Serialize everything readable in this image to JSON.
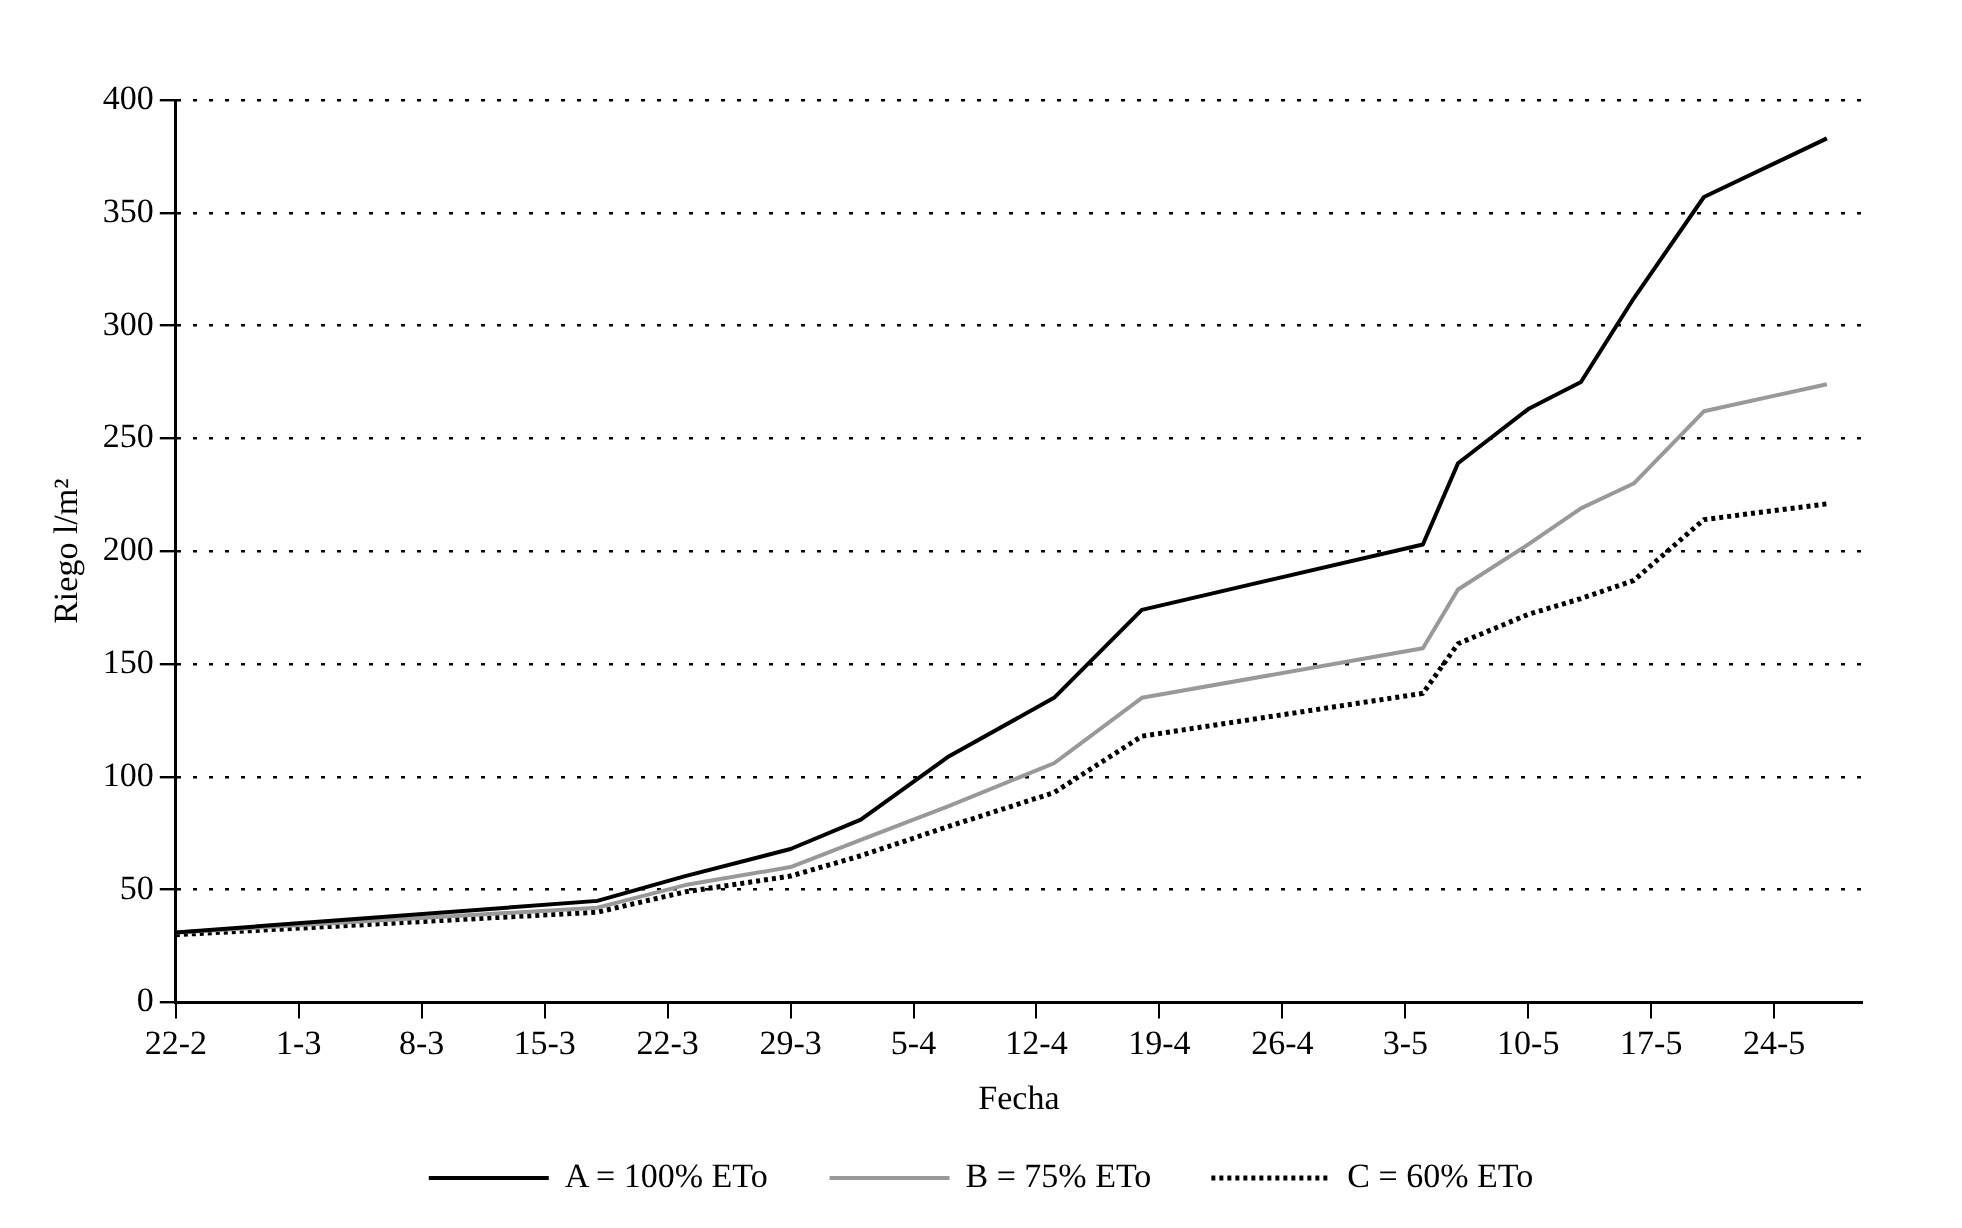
{
  "chart_data": {
    "type": "line",
    "xlabel": "Fecha",
    "ylabel": "Riego l/m²",
    "x": [
      "--02-22",
      "--03-18",
      "--03-23",
      "--03-29",
      "--04-02",
      "--04-07",
      "--04-13",
      "--04-18",
      "--05-04",
      "--05-06",
      "--05-10",
      "--05-13",
      "--05-16",
      "--05-20",
      "--05-27"
    ],
    "series": [
      {
        "name": "A = 100% ETo",
        "color": "#000000",
        "line_style": "solid",
        "values": [
          31,
          45,
          56,
          68,
          81,
          109,
          135,
          174,
          203,
          239,
          263,
          275,
          312,
          357,
          383
        ]
      },
      {
        "name": "B = 75% ETo",
        "color": "#999999",
        "line_style": "solid",
        "values": [
          31,
          42,
          52,
          60,
          72,
          87,
          106,
          135,
          157,
          183,
          203,
          219,
          230,
          262,
          274
        ]
      },
      {
        "name": "C = 60% ETo",
        "color": "#000000",
        "line_style": "dotted",
        "values": [
          30,
          40,
          49,
          56,
          65,
          78,
          93,
          118,
          137,
          159,
          172,
          179,
          187,
          214,
          221
        ]
      }
    ],
    "xlim": [
      "--02-22",
      "--05-29"
    ],
    "xticks": [
      {
        "value": "--02-22",
        "label": "22-2"
      },
      {
        "value": "--03-01",
        "label": "1-3"
      },
      {
        "value": "--03-08",
        "label": "8-3"
      },
      {
        "value": "--03-15",
        "label": "15-3"
      },
      {
        "value": "--03-22",
        "label": "22-3"
      },
      {
        "value": "--03-29",
        "label": "29-3"
      },
      {
        "value": "--04-05",
        "label": "5-4"
      },
      {
        "value": "--04-12",
        "label": "12-4"
      },
      {
        "value": "--04-19",
        "label": "19-4"
      },
      {
        "value": "--04-26",
        "label": "26-4"
      },
      {
        "value": "--05-03",
        "label": "3-5"
      },
      {
        "value": "--05-10",
        "label": "10-5"
      },
      {
        "value": "--05-17",
        "label": "17-5"
      },
      {
        "value": "--05-24",
        "label": "24-5"
      }
    ],
    "ylim": [
      0,
      400
    ],
    "yticks": [
      0,
      50,
      100,
      150,
      200,
      250,
      300,
      350,
      400
    ],
    "grid": "y",
    "legend": "bottom",
    "marker": "none"
  }
}
